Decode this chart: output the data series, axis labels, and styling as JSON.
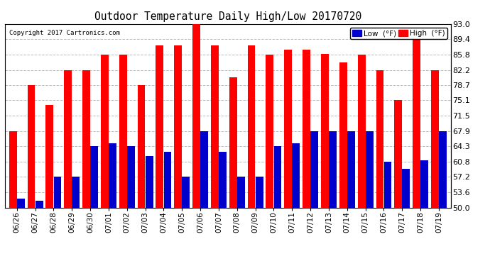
{
  "title": "Outdoor Temperature Daily High/Low 20170720",
  "copyright": "Copyright 2017 Cartronics.com",
  "dates": [
    "06/26",
    "06/27",
    "06/28",
    "06/29",
    "06/30",
    "07/01",
    "07/02",
    "07/03",
    "07/04",
    "07/05",
    "07/06",
    "07/07",
    "07/08",
    "07/09",
    "07/10",
    "07/11",
    "07/12",
    "07/13",
    "07/14",
    "07/15",
    "07/16",
    "07/17",
    "07/18",
    "07/19"
  ],
  "highs": [
    67.9,
    78.7,
    74.0,
    82.2,
    82.2,
    85.8,
    85.8,
    78.7,
    88.0,
    88.0,
    93.0,
    88.0,
    80.5,
    88.0,
    85.8,
    87.0,
    87.0,
    86.0,
    84.0,
    85.8,
    82.2,
    75.1,
    89.4,
    82.2
  ],
  "lows": [
    52.0,
    51.5,
    57.2,
    57.2,
    64.3,
    65.0,
    64.3,
    62.0,
    63.0,
    57.2,
    67.9,
    63.0,
    57.2,
    57.2,
    64.3,
    65.0,
    67.9,
    67.9,
    67.9,
    67.9,
    60.8,
    59.0,
    61.0,
    67.9
  ],
  "high_color": "#ff0000",
  "low_color": "#0000cc",
  "bg_color": "#ffffff",
  "grid_color": "#bbbbbb",
  "yticks": [
    50.0,
    53.6,
    57.2,
    60.8,
    64.3,
    67.9,
    71.5,
    75.1,
    78.7,
    82.2,
    85.8,
    89.4,
    93.0
  ],
  "ymin": 50.0,
  "ymax": 93.0
}
